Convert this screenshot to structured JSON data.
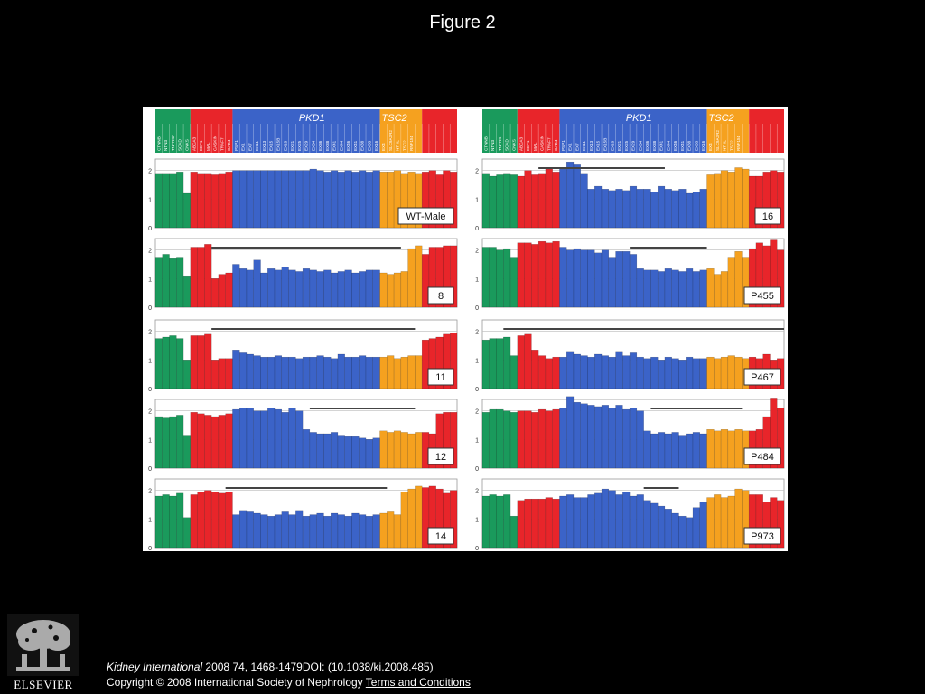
{
  "page": {
    "title": "Figure 2",
    "citation_journal": "Kidney International",
    "citation_rest": " 2008 74, 1468-1479DOI: (10.1038/ki.2008.485)",
    "copyright": "Copyright © 2008 International Society of Nephrology ",
    "terms_link": "Terms and Conditions",
    "publisher": "ELSEVIER"
  },
  "chart_data": {
    "type": "bar",
    "ylim": [
      0,
      2.4
    ],
    "yticks": [
      "0",
      "1",
      "2"
    ],
    "reference_lines": [
      1,
      2
    ],
    "colors": {
      "green": "#1a9a5c",
      "red": "#e8252a",
      "blue": "#3b63c8",
      "orange": "#f5a11f"
    },
    "gene_labels": [
      "PKD1",
      "TSC2"
    ],
    "header_probes_left": [
      "CTNNB",
      "NTN3",
      "TNFRSF",
      "SCAD",
      "CNKS",
      "ABCA3",
      "EEF1",
      "MAL",
      "CASKIN",
      "TRAF7",
      "GAB4",
      "PSP1",
      "EX1",
      "EX7",
      "EX11",
      "EX13",
      "EX15",
      "EX15B",
      "EX18",
      "EX21",
      "EX25",
      "EX29",
      "EX34",
      "EX36",
      "EX38",
      "EX41",
      "EX44",
      "EX46",
      "EX41",
      "EX38",
      "EX33",
      "EX16",
      "EX4",
      "SLC9A3R2",
      "NTHL",
      "TSC2",
      "RNF151"
    ],
    "header_probes_right": [
      "CTNNB",
      "NTN3",
      "TNFRS",
      "SCAD",
      "CNKS",
      "ABCA3",
      "EEF1",
      "MAL",
      "CASKIN",
      "TRAF7",
      "GAB4",
      "PSP1",
      "EX1",
      "EX7",
      "EX11",
      "EX13",
      "EX15",
      "EX15B",
      "EX18",
      "EX21",
      "EX25",
      "EX29",
      "EX34",
      "EX36",
      "EX38",
      "EX41",
      "EX44",
      "EX46",
      "EX41",
      "EX38",
      "EX33",
      "EX16",
      "EX4",
      "SLC9A3R2",
      "NTHL",
      "TSC2",
      "RNF151"
    ],
    "panels": [
      {
        "label": "WT-Male",
        "column": 0,
        "row": 0,
        "groups": [
          {
            "color": "green",
            "values": [
              1.9,
              1.9,
              1.9,
              1.95,
              1.2
            ]
          },
          {
            "color": "red",
            "values": [
              1.95,
              1.9,
              1.9,
              1.85,
              1.9,
              1.95
            ]
          },
          {
            "color": "blue",
            "values": [
              2.0,
              2.0,
              2.0,
              2.0,
              2.0,
              2.0,
              2.0,
              2.0,
              2.0,
              2.0,
              2.0,
              2.05,
              2.0,
              1.95,
              2.0,
              1.95,
              2.0,
              1.95,
              2.0,
              1.95,
              2.0
            ]
          },
          {
            "color": "orange",
            "values": [
              1.95,
              1.95,
              2.0,
              1.9,
              1.95,
              1.9
            ]
          },
          {
            "color": "red",
            "values": [
              1.95,
              2.0,
              1.85,
              2.0,
              1.95
            ]
          }
        ],
        "deletion": null
      },
      {
        "label": "16",
        "column": 1,
        "row": 0,
        "groups": [
          {
            "color": "green",
            "values": [
              1.9,
              1.8,
              1.85,
              1.9,
              1.85
            ]
          },
          {
            "color": "red",
            "values": [
              1.8,
              2.0,
              1.85,
              1.9,
              2.05,
              1.95
            ]
          },
          {
            "color": "blue",
            "values": [
              2.05,
              2.3,
              2.2,
              1.9,
              1.35,
              1.45,
              1.35,
              1.3,
              1.35,
              1.3,
              1.45,
              1.35,
              1.35,
              1.25,
              1.45,
              1.35,
              1.3,
              1.35,
              1.2,
              1.25,
              1.35
            ]
          },
          {
            "color": "orange",
            "values": [
              1.85,
              1.9,
              2.0,
              1.95,
              2.1,
              2.05
            ]
          },
          {
            "color": "red",
            "values": [
              1.8,
              1.8,
              1.95,
              2.0,
              1.95
            ]
          }
        ],
        "deletion": [
          8,
          26
        ]
      },
      {
        "label": "8",
        "column": 0,
        "row": 1,
        "groups": [
          {
            "color": "green",
            "values": [
              1.75,
              1.85,
              1.7,
              1.75,
              1.1
            ]
          },
          {
            "color": "red",
            "values": [
              2.1,
              2.1,
              2.2,
              1.0,
              1.15,
              1.2
            ]
          },
          {
            "color": "blue",
            "values": [
              1.5,
              1.35,
              1.3,
              1.65,
              1.2,
              1.35,
              1.3,
              1.4,
              1.3,
              1.25,
              1.35,
              1.3,
              1.25,
              1.3,
              1.2,
              1.25,
              1.3,
              1.2,
              1.25,
              1.3,
              1.3
            ]
          },
          {
            "color": "orange",
            "values": [
              1.2,
              1.15,
              1.2,
              1.25,
              2.05,
              2.15
            ]
          },
          {
            "color": "red",
            "values": [
              1.85,
              2.1,
              2.1,
              2.15,
              2.15
            ]
          }
        ],
        "deletion": [
          8,
          35
        ]
      },
      {
        "label": "P455",
        "column": 1,
        "row": 1,
        "groups": [
          {
            "color": "green",
            "values": [
              2.1,
              2.1,
              2.0,
              2.05,
              1.75
            ]
          },
          {
            "color": "red",
            "values": [
              2.25,
              2.25,
              2.2,
              2.3,
              2.25,
              2.3
            ]
          },
          {
            "color": "blue",
            "values": [
              2.1,
              2.0,
              2.05,
              2.0,
              2.0,
              1.9,
              2.0,
              1.75,
              1.95,
              1.95,
              1.85,
              1.35,
              1.3,
              1.3,
              1.25,
              1.35,
              1.3,
              1.25,
              1.35,
              1.25,
              1.3
            ]
          },
          {
            "color": "orange",
            "values": [
              1.35,
              1.15,
              1.25,
              1.75,
              1.95,
              1.75
            ]
          },
          {
            "color": "red",
            "values": [
              2.05,
              2.25,
              2.15,
              2.35,
              2.0
            ]
          }
        ],
        "deletion": [
          21,
          32
        ]
      },
      {
        "label": "11",
        "column": 0,
        "row": 2,
        "groups": [
          {
            "color": "green",
            "values": [
              1.75,
              1.8,
              1.85,
              1.75,
              1.0
            ]
          },
          {
            "color": "red",
            "values": [
              1.85,
              1.85,
              1.9,
              1.0,
              1.05,
              1.05
            ]
          },
          {
            "color": "blue",
            "values": [
              1.35,
              1.25,
              1.2,
              1.15,
              1.1,
              1.1,
              1.15,
              1.1,
              1.1,
              1.05,
              1.1,
              1.1,
              1.15,
              1.1,
              1.05,
              1.2,
              1.1,
              1.1,
              1.15,
              1.1,
              1.1
            ]
          },
          {
            "color": "orange",
            "values": [
              1.1,
              1.15,
              1.05,
              1.1,
              1.15,
              1.15
            ]
          },
          {
            "color": "red",
            "values": [
              1.7,
              1.75,
              1.8,
              1.9,
              1.95
            ]
          }
        ],
        "deletion": [
          8,
          37
        ]
      },
      {
        "label": "P467",
        "column": 1,
        "row": 2,
        "groups": [
          {
            "color": "green",
            "values": [
              1.7,
              1.75,
              1.75,
              1.8,
              1.15
            ]
          },
          {
            "color": "red",
            "values": [
              1.85,
              1.9,
              1.35,
              1.15,
              1.05,
              1.1
            ]
          },
          {
            "color": "blue",
            "values": [
              1.1,
              1.3,
              1.2,
              1.15,
              1.1,
              1.2,
              1.15,
              1.1,
              1.3,
              1.15,
              1.25,
              1.1,
              1.05,
              1.1,
              1.0,
              1.1,
              1.05,
              1.0,
              1.1,
              1.05,
              1.05
            ]
          },
          {
            "color": "orange",
            "values": [
              1.1,
              1.05,
              1.1,
              1.15,
              1.1,
              1.05
            ]
          },
          {
            "color": "red",
            "values": [
              1.1,
              1.05,
              1.2,
              1.0,
              1.05
            ]
          }
        ],
        "deletion": [
          3,
          43
        ]
      },
      {
        "label": "12",
        "column": 0,
        "row": 3,
        "groups": [
          {
            "color": "green",
            "values": [
              1.8,
              1.75,
              1.8,
              1.85,
              1.15
            ]
          },
          {
            "color": "red",
            "values": [
              1.95,
              1.9,
              1.85,
              1.8,
              1.85,
              1.9
            ]
          },
          {
            "color": "blue",
            "values": [
              2.05,
              2.1,
              2.1,
              2.0,
              2.0,
              2.1,
              2.05,
              1.95,
              2.1,
              2.0,
              1.35,
              1.25,
              1.2,
              1.2,
              1.25,
              1.15,
              1.1,
              1.1,
              1.05,
              1.0,
              1.05
            ]
          },
          {
            "color": "orange",
            "values": [
              1.3,
              1.25,
              1.3,
              1.25,
              1.2,
              1.25
            ]
          },
          {
            "color": "red",
            "values": [
              1.25,
              1.2,
              1.9,
              1.95,
              1.95
            ]
          }
        ],
        "deletion": [
          22,
          37
        ]
      },
      {
        "label": "P484",
        "column": 1,
        "row": 3,
        "groups": [
          {
            "color": "green",
            "values": [
              1.95,
              2.05,
              2.05,
              2.0,
              1.95
            ]
          },
          {
            "color": "red",
            "values": [
              2.0,
              2.0,
              1.95,
              2.05,
              2.0,
              2.05
            ]
          },
          {
            "color": "blue",
            "values": [
              2.1,
              2.5,
              2.3,
              2.25,
              2.2,
              2.15,
              2.2,
              2.1,
              2.2,
              2.05,
              2.1,
              2.0,
              1.3,
              1.2,
              1.25,
              1.2,
              1.25,
              1.15,
              1.2,
              1.25,
              1.2
            ]
          },
          {
            "color": "orange",
            "values": [
              1.35,
              1.3,
              1.35,
              1.3,
              1.35,
              1.3
            ]
          },
          {
            "color": "red",
            "values": [
              1.3,
              1.35,
              1.8,
              2.45,
              2.1
            ]
          }
        ],
        "deletion": [
          24,
          37
        ]
      },
      {
        "label": "14",
        "column": 0,
        "row": 4,
        "groups": [
          {
            "color": "green",
            "values": [
              1.8,
              1.85,
              1.8,
              1.9,
              1.05
            ]
          },
          {
            "color": "red",
            "values": [
              1.85,
              1.95,
              2.0,
              1.95,
              1.9,
              1.95
            ]
          },
          {
            "color": "blue",
            "values": [
              1.15,
              1.3,
              1.25,
              1.2,
              1.15,
              1.1,
              1.15,
              1.25,
              1.15,
              1.3,
              1.1,
              1.15,
              1.2,
              1.1,
              1.2,
              1.15,
              1.1,
              1.2,
              1.15,
              1.1,
              1.15
            ]
          },
          {
            "color": "orange",
            "values": [
              1.2,
              1.25,
              1.15,
              1.95,
              2.05,
              2.15
            ]
          },
          {
            "color": "red",
            "values": [
              2.1,
              2.15,
              2.05,
              1.9,
              2.0
            ]
          }
        ],
        "deletion": [
          10,
          33
        ]
      },
      {
        "label": "P973",
        "column": 1,
        "row": 4,
        "groups": [
          {
            "color": "green",
            "values": [
              1.8,
              1.85,
              1.8,
              1.85,
              1.1
            ]
          },
          {
            "color": "red",
            "values": [
              1.65,
              1.7,
              1.7,
              1.7,
              1.75,
              1.7
            ]
          },
          {
            "color": "blue",
            "values": [
              1.8,
              1.85,
              1.75,
              1.75,
              1.85,
              1.9,
              2.05,
              2.0,
              1.85,
              1.95,
              1.8,
              1.85,
              1.65,
              1.55,
              1.45,
              1.35,
              1.2,
              1.1,
              1.05,
              1.4,
              1.6
            ]
          },
          {
            "color": "orange",
            "values": [
              1.75,
              1.85,
              1.75,
              1.8,
              2.05,
              2.0
            ]
          },
          {
            "color": "red",
            "values": [
              1.85,
              1.85,
              1.6,
              1.75,
              1.65
            ]
          }
        ],
        "deletion": [
          23,
          28
        ]
      }
    ]
  }
}
